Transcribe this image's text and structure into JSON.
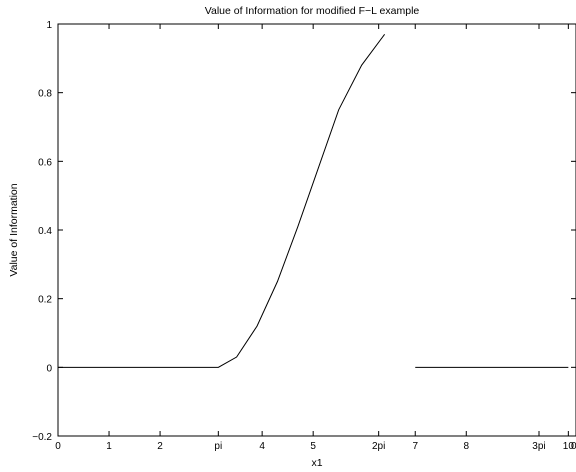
{
  "chart_data": {
    "type": "line",
    "title": "Value of Information for modified F−L example",
    "xlabel": "x1",
    "ylabel": "Value of Information",
    "xlim": [
      0,
      10.15
    ],
    "ylim": [
      -0.2,
      1
    ],
    "xticks": [
      {
        "value": 0,
        "label": "0"
      },
      {
        "value": 1,
        "label": "1"
      },
      {
        "value": 2,
        "label": "2"
      },
      {
        "value": 3.1416,
        "label": "pi"
      },
      {
        "value": 4,
        "label": "4"
      },
      {
        "value": 5,
        "label": "5"
      },
      {
        "value": 6.2832,
        "label": "2pi"
      },
      {
        "value": 7,
        "label": "7"
      },
      {
        "value": 8,
        "label": "8"
      },
      {
        "value": 9.4248,
        "label": "3pi"
      },
      {
        "value": 10,
        "label": "10"
      }
    ],
    "yticks": [
      {
        "value": -0.2,
        "label": "−0.2"
      },
      {
        "value": 0,
        "label": "0"
      },
      {
        "value": 0.2,
        "label": "0.2"
      },
      {
        "value": 0.4,
        "label": "0.4"
      },
      {
        "value": 0.6,
        "label": "0.6"
      },
      {
        "value": 0.8,
        "label": "0.8"
      },
      {
        "value": 1,
        "label": "1"
      }
    ],
    "right_edge_tick_label": "0",
    "grid": false,
    "series": [
      {
        "segments": [
          [
            [
              0,
              0
            ],
            [
              3.1416,
              0
            ],
            [
              3.5,
              0.03
            ],
            [
              3.9,
              0.12
            ],
            [
              4.3,
              0.25
            ],
            [
              4.7,
              0.41
            ],
            [
              5.1,
              0.58
            ],
            [
              5.5,
              0.75
            ],
            [
              5.95,
              0.88
            ],
            [
              6.4,
              0.97
            ]
          ],
          [
            [
              7,
              0
            ],
            [
              10,
              0
            ]
          ]
        ]
      }
    ]
  }
}
